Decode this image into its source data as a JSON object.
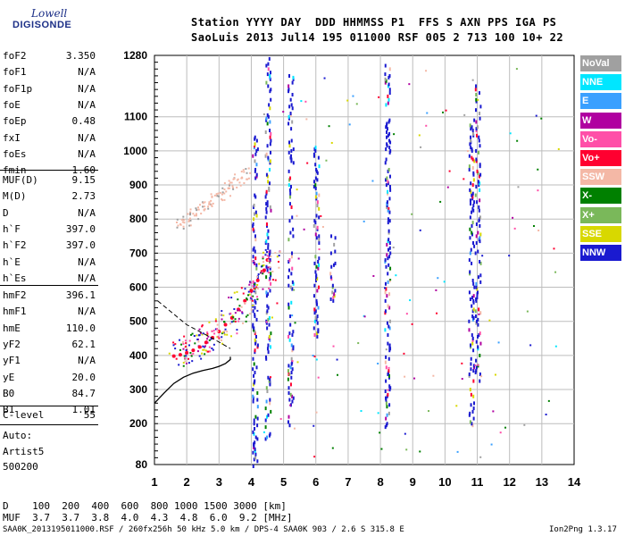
{
  "logo": {
    "line1": "Lowell",
    "line2": "DIGISONDE"
  },
  "header": {
    "line1": "Station YYYY DAY  DDD HHMMSS P1  FFS S AXN PPS IGA PS",
    "line2": "SaoLuis 2013 Jul14 195 011000 RSF 005 2 713 100 10+ 22"
  },
  "params": [
    {
      "label": "foF2",
      "value": "3.350"
    },
    {
      "label": "foF1",
      "value": "N/A"
    },
    {
      "label": "foF1p",
      "value": "N/A"
    },
    {
      "label": "foE",
      "value": "N/A"
    },
    {
      "label": "foEp",
      "value": "0.48"
    },
    {
      "label": "fxI",
      "value": "N/A"
    },
    {
      "label": "foEs",
      "value": "N/A"
    },
    {
      "label": "fmin",
      "value": "1.60"
    },
    {
      "label": "MUF(D)",
      "value": "9.15"
    },
    {
      "label": "M(D)",
      "value": "2.73"
    },
    {
      "label": "D",
      "value": "N/A"
    },
    {
      "label": "h`F",
      "value": "397.0"
    },
    {
      "label": "h`F2",
      "value": "397.0"
    },
    {
      "label": "h`E",
      "value": "N/A"
    },
    {
      "label": "h`Es",
      "value": "N/A"
    },
    {
      "label": "hmF2",
      "value": "396.1"
    },
    {
      "label": "hmF1",
      "value": "N/A"
    },
    {
      "label": "hmE",
      "value": "110.0"
    },
    {
      "label": "yF2",
      "value": "62.1"
    },
    {
      "label": "yF1",
      "value": "N/A"
    },
    {
      "label": "yE",
      "value": "20.0"
    },
    {
      "label": "B0",
      "value": "84.7"
    },
    {
      "label": "B1",
      "value": "1.01"
    },
    {
      "label": "C-level",
      "value": "55"
    }
  ],
  "auto_block": {
    "line1": "Auto:",
    "line2": "Artist5",
    "line3": "500200"
  },
  "legend": [
    {
      "label": "NoVal",
      "color": "#a0a0a0"
    },
    {
      "label": "NNE",
      "color": "#00e6ff"
    },
    {
      "label": "E",
      "color": "#3aa0ff"
    },
    {
      "label": "W",
      "color": "#b000a0"
    },
    {
      "label": "Vo-",
      "color": "#ff4fa8"
    },
    {
      "label": "Vo+",
      "color": "#ff0030"
    },
    {
      "label": "SSW",
      "color": "#f4b8a6"
    },
    {
      "label": "X-",
      "color": "#008000"
    },
    {
      "label": "X+",
      "color": "#7ab85a"
    },
    {
      "label": "SSE",
      "color": "#d8d800"
    },
    {
      "label": "NNW",
      "color": "#1a1ad0"
    }
  ],
  "footer": {
    "d_row": "D    100  200  400  600  800 1000 1500 3000 [km]",
    "muf_row": "MUF  3.7  3.7  3.8  4.0  4.3  4.8  6.0  9.2 [MHz]",
    "file_info": "SAA0K_2013195011000.RSF / 260fx256h 50 kHz 5.0 km / DPS-4 SAA0K 903 / 2.6 S 315.8 E",
    "version": "Ion2Png 1.3.17"
  },
  "chart_data": {
    "type": "scatter",
    "title": "",
    "xlabel": "",
    "ylabel": "",
    "xlim": [
      1,
      14
    ],
    "ylim": [
      80,
      1280
    ],
    "x_ticks": [
      1,
      2,
      3,
      4,
      5,
      6,
      7,
      8,
      9,
      10,
      11,
      12,
      13,
      14
    ],
    "y_ticks": [
      80,
      200,
      300,
      400,
      500,
      600,
      700,
      800,
      900,
      1000,
      1100,
      1280
    ],
    "grid": true,
    "legend_position": "right",
    "trace_o_mode": {
      "series": "F2 o-trace (Vo-/Vo+/X)",
      "x": [
        1.6,
        1.8,
        2.0,
        2.2,
        2.4,
        2.6,
        2.8,
        3.0,
        3.2,
        3.4,
        3.6,
        3.8,
        4.0,
        4.2,
        4.4,
        4.5
      ],
      "y": [
        398,
        402,
        408,
        415,
        425,
        438,
        452,
        470,
        490,
        510,
        535,
        560,
        590,
        620,
        650,
        680
      ]
    },
    "trace_multihop": {
      "series": "SSW second hop",
      "x": [
        1.8,
        2.0,
        2.2,
        2.4,
        2.6,
        2.8,
        3.0,
        3.2,
        3.4,
        3.6,
        3.8
      ],
      "y": [
        790,
        800,
        815,
        830,
        845,
        860,
        875,
        890,
        905,
        920,
        935
      ]
    },
    "profile_curve": {
      "series": "electron density profile",
      "x": [
        1.0,
        1.3,
        1.6,
        1.9,
        2.2,
        2.5,
        2.8,
        3.0,
        3.2,
        3.35,
        3.35
      ],
      "y": [
        260,
        290,
        318,
        336,
        348,
        356,
        362,
        368,
        376,
        388,
        396
      ]
    },
    "vertical_streaks": [
      {
        "x": 4.1,
        "ymin": 80,
        "ymax": 1060
      },
      {
        "x": 4.5,
        "ymin": 160,
        "ymax": 1280
      },
      {
        "x": 5.2,
        "ymin": 200,
        "ymax": 1240
      },
      {
        "x": 6.0,
        "ymin": 460,
        "ymax": 1020
      },
      {
        "x": 6.5,
        "ymin": 560,
        "ymax": 760
      },
      {
        "x": 8.2,
        "ymin": 190,
        "ymax": 1260
      },
      {
        "x": 10.8,
        "ymin": 200,
        "ymax": 1100
      },
      {
        "x": 11.0,
        "ymin": 330,
        "ymax": 1200
      }
    ]
  }
}
